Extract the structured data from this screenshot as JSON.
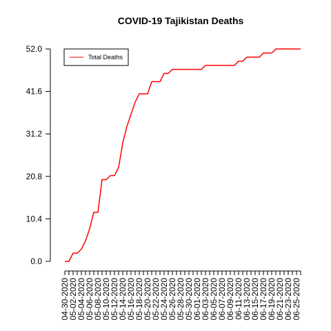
{
  "chart_data": {
    "type": "line",
    "title": "COVID-19 Tajikistan Deaths",
    "xlabel": "",
    "ylabel": "",
    "ylim": [
      0,
      52
    ],
    "yticks": [
      "0.0",
      "10.4",
      "20.8",
      "31.2",
      "41.6",
      "52.0"
    ],
    "xticks": [
      "04-30-2020",
      "05-02-2020",
      "05-04-2020",
      "05-06-2020",
      "05-08-2020",
      "05-10-2020",
      "05-12-2020",
      "05-14-2020",
      "05-16-2020",
      "05-18-2020",
      "05-20-2020",
      "05-22-2020",
      "05-24-2020",
      "05-26-2020",
      "05-28-2020",
      "05-30-2020",
      "06-01-2020",
      "06-03-2020",
      "06-05-2020",
      "06-07-2020",
      "06-09-2020",
      "06-11-2020",
      "06-13-2020",
      "06-15-2020",
      "06-17-2020",
      "06-19-2020",
      "06-21-2020",
      "06-23-2020",
      "06-25-2020"
    ],
    "legend": {
      "position": "top-left",
      "entries": [
        "Total Deaths"
      ]
    },
    "grid": false,
    "color": "#ff0000",
    "series": [
      {
        "name": "Total Deaths",
        "x": [
          "04-30-2020",
          "05-01-2020",
          "05-02-2020",
          "05-03-2020",
          "05-04-2020",
          "05-05-2020",
          "05-06-2020",
          "05-07-2020",
          "05-08-2020",
          "05-09-2020",
          "05-10-2020",
          "05-11-2020",
          "05-12-2020",
          "05-13-2020",
          "05-14-2020",
          "05-15-2020",
          "05-16-2020",
          "05-17-2020",
          "05-18-2020",
          "05-19-2020",
          "05-20-2020",
          "05-21-2020",
          "05-22-2020",
          "05-23-2020",
          "05-24-2020",
          "05-25-2020",
          "05-26-2020",
          "05-27-2020",
          "05-28-2020",
          "05-29-2020",
          "05-30-2020",
          "05-31-2020",
          "06-01-2020",
          "06-02-2020",
          "06-03-2020",
          "06-04-2020",
          "06-05-2020",
          "06-06-2020",
          "06-07-2020",
          "06-08-2020",
          "06-09-2020",
          "06-10-2020",
          "06-11-2020",
          "06-12-2020",
          "06-13-2020",
          "06-14-2020",
          "06-15-2020",
          "06-16-2020",
          "06-17-2020",
          "06-18-2020",
          "06-19-2020",
          "06-20-2020",
          "06-21-2020",
          "06-22-2020",
          "06-23-2020",
          "06-24-2020",
          "06-25-2020",
          "06-26-2020"
        ],
        "values": [
          0,
          0,
          2,
          2,
          3,
          5,
          8,
          12,
          12,
          20,
          20,
          21,
          21,
          23,
          29,
          33,
          36,
          39,
          41,
          41,
          41,
          44,
          44,
          44,
          46,
          46,
          47,
          47,
          47,
          47,
          47,
          47,
          47,
          47,
          48,
          48,
          48,
          48,
          48,
          48,
          48,
          48,
          49,
          49,
          50,
          50,
          50,
          50,
          51,
          51,
          51,
          52,
          52,
          52,
          52,
          52,
          52,
          52
        ]
      }
    ]
  }
}
